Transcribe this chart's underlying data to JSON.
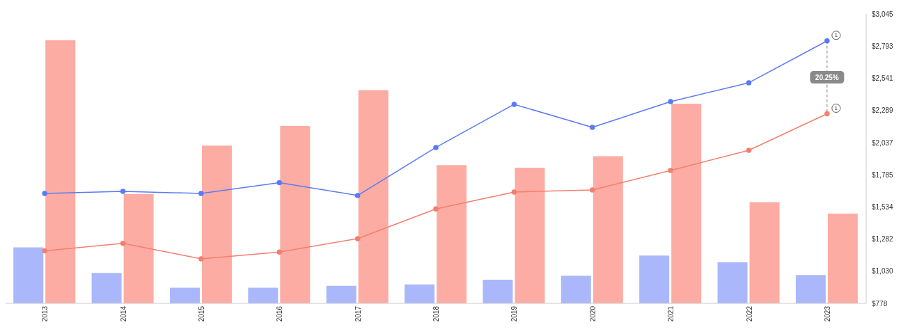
{
  "chart_data": {
    "type": "bar",
    "categories": [
      "2013",
      "2014",
      "2015",
      "2016",
      "2017",
      "2018",
      "2019",
      "2020",
      "2021",
      "2022",
      "2023"
    ],
    "series": [
      {
        "color": "#aab8fb",
        "values": [
          1217,
          1016,
          900,
          900,
          915,
          926,
          963,
          995,
          1153,
          1100,
          1000
        ]
      },
      {
        "color": "#fdaca3",
        "values": [
          2839,
          1634,
          2014,
          2168,
          2448,
          1861,
          1840,
          1930,
          2342,
          1571,
          1481
        ]
      },
      {
        "type": "line",
        "color": "#5a7af6",
        "values": [
          1639,
          1655,
          1639,
          1724,
          1623,
          1999,
          2337,
          2157,
          2358,
          2506,
          2834
        ]
      },
      {
        "type": "line",
        "color": "#f47e6e",
        "values": [
          1190,
          1248,
          1127,
          1180,
          1285,
          1518,
          1650,
          1666,
          1819,
          1977,
          2263
        ]
      }
    ],
    "ylim": [
      778,
      3045
    ],
    "yticks": [
      {
        "value": 778,
        "label": "$778"
      },
      {
        "value": 1030,
        "label": "$1,030"
      },
      {
        "value": 1282,
        "label": "$1,282"
      },
      {
        "value": 1534,
        "label": "$1,534"
      },
      {
        "value": 1785,
        "label": "$1,785"
      },
      {
        "value": 2037,
        "label": "$2,037"
      },
      {
        "value": 2289,
        "label": "$2,289"
      },
      {
        "value": 2541,
        "label": "$2,541"
      },
      {
        "value": 2793,
        "label": "$2,793"
      },
      {
        "value": 3045,
        "label": "$3,045"
      }
    ],
    "marker": "circle",
    "annotations": [
      {
        "text": "1",
        "x": "2023",
        "y": 2834
      },
      "20.25%",
      {
        "text": "1",
        "x": "2023",
        "y": 2263
      }
    ]
  }
}
